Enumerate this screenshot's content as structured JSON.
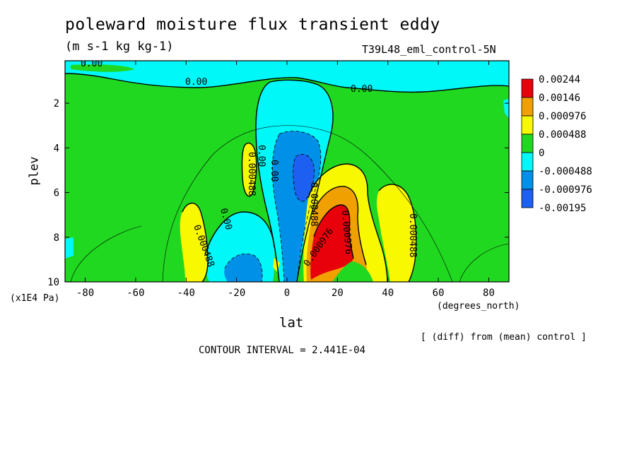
{
  "chart_data": {
    "type": "heatmap",
    "title": "poleward moisture flux transient eddy",
    "units": "(m s-1 kg kg-1)",
    "run_label": "T39L48_eml_control-5N",
    "xlabel": "lat",
    "x_unit_label": "(degrees_north)",
    "ylabel": "plev",
    "y_unit_label": "(x1E4 Pa)",
    "xlim": [
      -88,
      88
    ],
    "ylim": [
      10,
      0.1
    ],
    "x_ticks": [
      "-80",
      "-60",
      "-40",
      "-20",
      "0",
      "20",
      "40",
      "60",
      "80"
    ],
    "x_tick_values": [
      -80,
      -60,
      -40,
      -20,
      0,
      20,
      40,
      60,
      80
    ],
    "y_ticks": [
      "2",
      "4",
      "6",
      "8",
      "10"
    ],
    "y_tick_values": [
      2,
      4,
      6,
      8,
      10
    ],
    "legend": {
      "placement": "right",
      "levels": [
        "0.00244",
        "0.00146",
        "0.000976",
        "0.000488",
        "0",
        "-0.000488",
        "-0.000976",
        "-0.00195"
      ],
      "colors": [
        "#e8000b",
        "#f0a000",
        "#f8f800",
        "#20d820",
        "#00f8f8",
        "#0090e8",
        "#1d5ff0"
      ]
    },
    "contour_labels": [
      "0.00",
      "0.00",
      "0.00",
      "0.00",
      "0.00",
      "0.00",
      "0.000488",
      "0.000488",
      "0.000488",
      "0.000488",
      "0.000976",
      "0.000976"
    ],
    "note": "[ (diff) from (mean) control ]",
    "contour_interval": "CONTOUR INTERVAL = 2.441E-04",
    "colors": {
      "red": "#e8000b",
      "orange": "#f0a000",
      "yellow": "#f8f800",
      "green": "#20d820",
      "cyan": "#00f8f8",
      "blue": "#0090e8",
      "darkblue": "#1d5ff0"
    }
  }
}
